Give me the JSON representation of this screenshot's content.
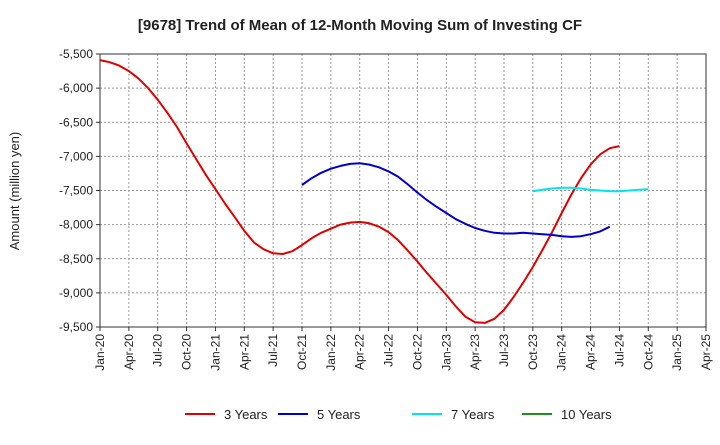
{
  "chart_data": {
    "type": "line",
    "title": "[9678]  Trend of Mean of 12-Month Moving Sum of Investing CF",
    "ylabel": "Amount (million yen)",
    "xlabel": "",
    "ylim": [
      -9500,
      -5500
    ],
    "yticks": [
      -5500,
      -6000,
      -6500,
      -7000,
      -7500,
      -8000,
      -8500,
      -9000,
      -9500
    ],
    "ytick_labels": [
      "-5,500",
      "-6,000",
      "-6,500",
      "-7,000",
      "-7,500",
      "-8,000",
      "-8,500",
      "-9,000",
      "-9,500"
    ],
    "xticks": [
      "Jan-20",
      "Apr-20",
      "Jul-20",
      "Oct-20",
      "Jan-21",
      "Apr-21",
      "Jul-21",
      "Oct-21",
      "Jan-22",
      "Apr-22",
      "Jul-22",
      "Oct-22",
      "Jan-23",
      "Apr-23",
      "Jul-23",
      "Oct-23",
      "Jan-24",
      "Apr-24",
      "Jul-24",
      "Oct-24",
      "Jan-25",
      "Apr-25"
    ],
    "grid": true,
    "legend_position": "bottom",
    "series": [
      {
        "name": "3 Years",
        "color": "#e00000",
        "start": "Jan-20",
        "values": [
          -5590,
          -5620,
          -5670,
          -5750,
          -5860,
          -6000,
          -6170,
          -6360,
          -6570,
          -6810,
          -7040,
          -7270,
          -7480,
          -7690,
          -7890,
          -8090,
          -8260,
          -8360,
          -8420,
          -8430,
          -8390,
          -8300,
          -8200,
          -8120,
          -8060,
          -8000,
          -7970,
          -7960,
          -7980,
          -8030,
          -8110,
          -8230,
          -8380,
          -8540,
          -8710,
          -8870,
          -9030,
          -9200,
          -9350,
          -9430,
          -9440,
          -9380,
          -9250,
          -9060,
          -8850,
          -8620,
          -8370,
          -8110,
          -7830,
          -7560,
          -7320,
          -7120,
          -6970,
          -6880,
          -6850
        ]
      },
      {
        "name": "5 Years",
        "color": "#0000cc",
        "start": "Oct-21",
        "values": [
          -7420,
          -7320,
          -7240,
          -7180,
          -7140,
          -7110,
          -7100,
          -7120,
          -7160,
          -7220,
          -7300,
          -7410,
          -7530,
          -7640,
          -7740,
          -7830,
          -7920,
          -7990,
          -8050,
          -8090,
          -8120,
          -8130,
          -8130,
          -8120,
          -8130,
          -8140,
          -8150,
          -8170,
          -8180,
          -8170,
          -8140,
          -8100,
          -8030
        ]
      },
      {
        "name": "7 Years",
        "color": "#00e5ee",
        "start": "Oct-23",
        "values": [
          -7510,
          -7490,
          -7470,
          -7460,
          -7460,
          -7470,
          -7490,
          -7500,
          -7510,
          -7510,
          -7500,
          -7490,
          -7480
        ]
      },
      {
        "name": "10 Years",
        "color": "#228b22",
        "start": "Oct-24",
        "values": []
      }
    ]
  }
}
